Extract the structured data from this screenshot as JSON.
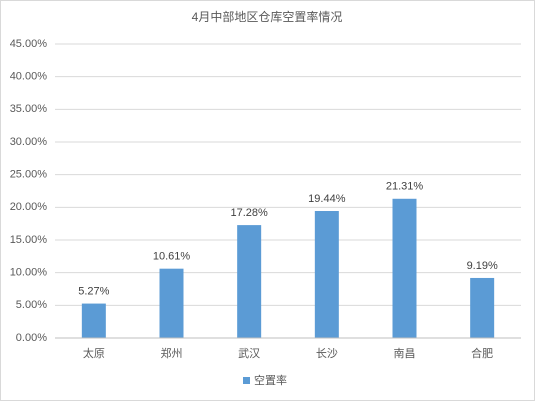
{
  "chart_data": {
    "type": "bar",
    "title": "4月中部地区仓库空置率情况",
    "categories": [
      "太原",
      "郑州",
      "武汉",
      "长沙",
      "南昌",
      "合肥"
    ],
    "series": [
      {
        "name": "空置率",
        "color": "#5b9bd5",
        "values": [
          5.27,
          10.61,
          17.28,
          19.44,
          21.31,
          9.19
        ],
        "value_labels": [
          "5.27%",
          "10.61%",
          "17.28%",
          "19.44%",
          "21.31%",
          "9.19%"
        ]
      }
    ],
    "ylim": [
      0,
      45
    ],
    "yticks": [
      {
        "value": 0,
        "label": "0.00%"
      },
      {
        "value": 5,
        "label": "5.00%"
      },
      {
        "value": 10,
        "label": "10.00%"
      },
      {
        "value": 15,
        "label": "15.00%"
      },
      {
        "value": 20,
        "label": "20.00%"
      },
      {
        "value": 25,
        "label": "25.00%"
      },
      {
        "value": 30,
        "label": "30.00%"
      },
      {
        "value": 35,
        "label": "35.00%"
      },
      {
        "value": 40,
        "label": "40.00%"
      },
      {
        "value": 45,
        "label": "45.00%"
      }
    ],
    "grid": true,
    "legend": "bottom"
  }
}
